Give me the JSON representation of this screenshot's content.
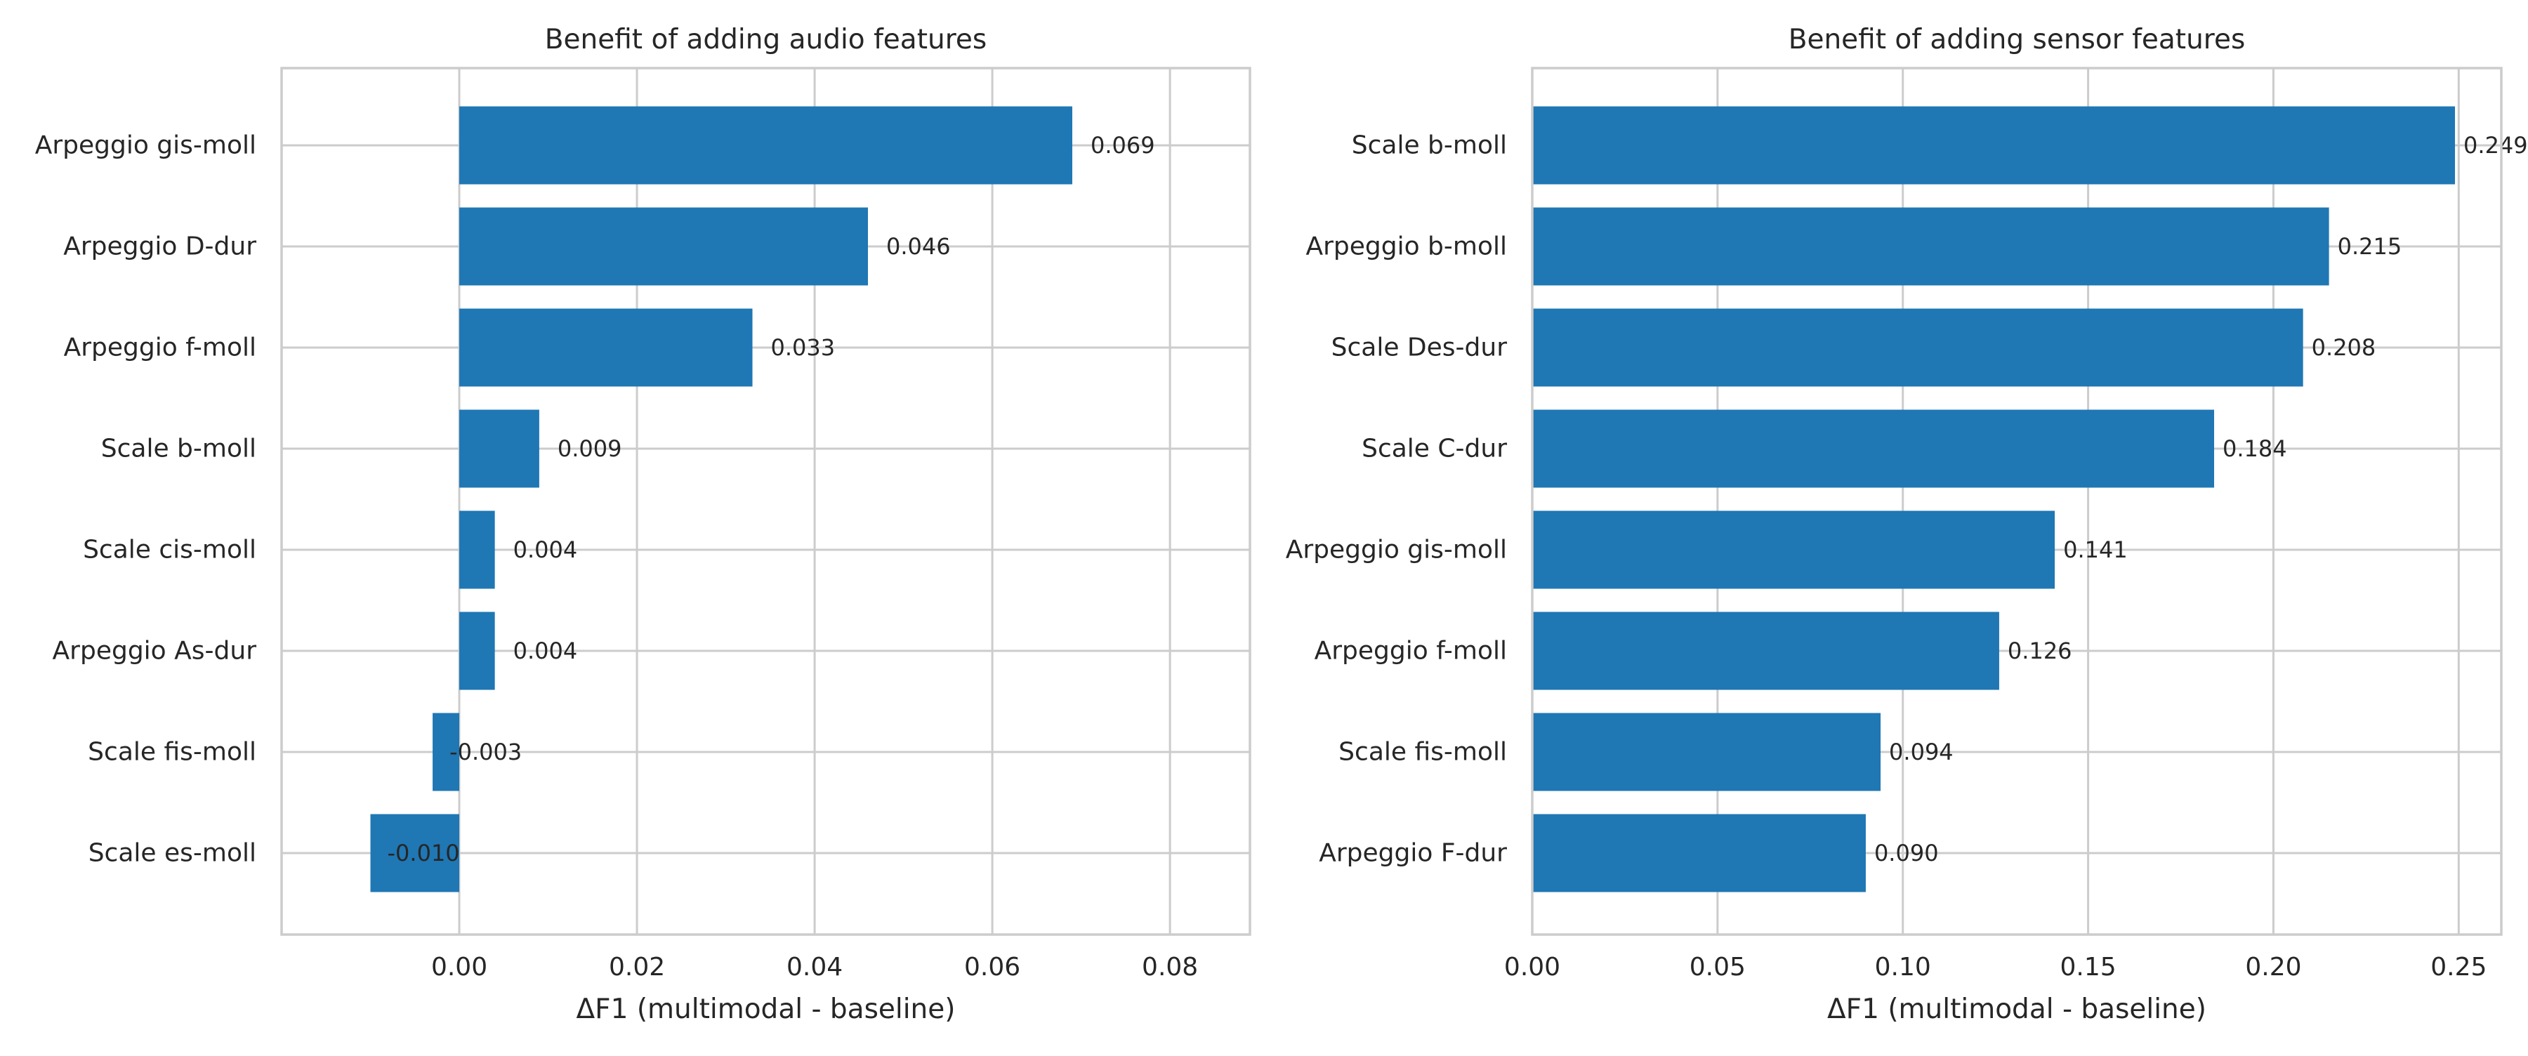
{
  "chart_data": [
    {
      "type": "bar",
      "orientation": "horizontal",
      "title": "Benefit of adding audio features",
      "xlabel": "ΔF1 (multimodal - baseline)",
      "ylabel": "",
      "xlim": [
        -0.02,
        0.089
      ],
      "xticks": [
        0.0,
        0.02,
        0.04,
        0.06,
        0.08
      ],
      "xtick_labels": [
        "0.00",
        "0.02",
        "0.04",
        "0.06",
        "0.08"
      ],
      "grid": true,
      "categories": [
        "Arpeggio gis-moll",
        "Arpeggio D-dur",
        "Arpeggio f-moll",
        "Scale b-moll",
        "Scale cis-moll",
        "Arpeggio As-dur",
        "Scale fis-moll",
        "Scale es-moll"
      ],
      "values": [
        0.069,
        0.046,
        0.033,
        0.009,
        0.004,
        0.004,
        -0.003,
        -0.01
      ],
      "value_labels": [
        "0.069",
        "0.046",
        "0.033",
        "0.009",
        "0.004",
        "0.004",
        "-0.003",
        "-0.010"
      ],
      "bar_color": "#1f77b4"
    },
    {
      "type": "bar",
      "orientation": "horizontal",
      "title": "Benefit of adding sensor features",
      "xlabel": "ΔF1 (multimodal - baseline)",
      "ylabel": "",
      "xlim": [
        0.0,
        0.2615
      ],
      "xticks": [
        0.0,
        0.05,
        0.1,
        0.15,
        0.2,
        0.25
      ],
      "xtick_labels": [
        "0.00",
        "0.05",
        "0.10",
        "0.15",
        "0.20",
        "0.25"
      ],
      "grid": true,
      "categories": [
        "Scale b-moll",
        "Arpeggio b-moll",
        "Scale Des-dur",
        "Scale C-dur",
        "Arpeggio gis-moll",
        "Arpeggio f-moll",
        "Scale fis-moll",
        "Arpeggio F-dur"
      ],
      "values": [
        0.249,
        0.215,
        0.208,
        0.184,
        0.141,
        0.126,
        0.094,
        0.09
      ],
      "value_labels": [
        "0.249",
        "0.215",
        "0.208",
        "0.184",
        "0.141",
        "0.126",
        "0.094",
        "0.090"
      ],
      "bar_color": "#1f77b4"
    }
  ]
}
